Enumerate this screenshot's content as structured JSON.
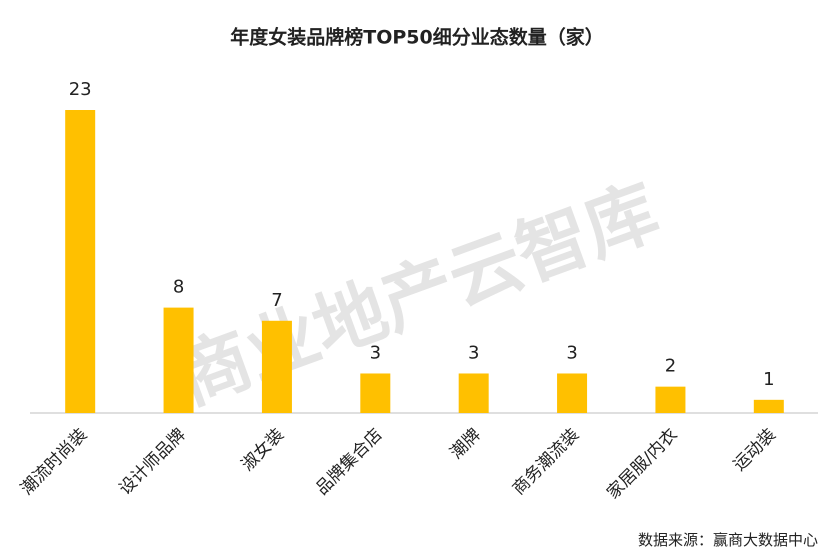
{
  "chart_data": {
    "type": "bar",
    "title": "年度女装品牌榜TOP50细分业态数量（家）",
    "categories": [
      "潮流时尚装",
      "设计师品牌",
      "淑女装",
      "品牌集合店",
      "潮牌",
      "商务潮流装",
      "家居服/内衣",
      "运动装"
    ],
    "values": [
      23,
      8,
      7,
      3,
      3,
      3,
      2,
      1
    ],
    "color": "#ffc000",
    "watermark": "商业地产云智库",
    "source": "数据来源：赢商大数据中心"
  }
}
